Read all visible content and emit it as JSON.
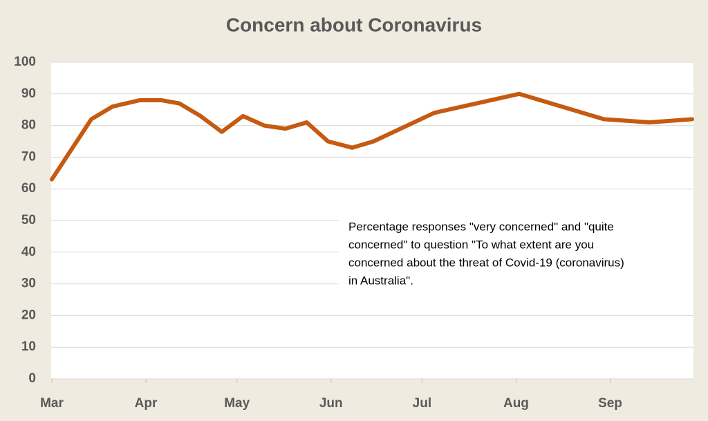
{
  "chart_data": {
    "type": "line",
    "title": "Concern about Coronavirus",
    "annotation": [
      "Percentage responses \"very concerned\" and \"quite",
      "concerned\" to question \"To what extent are you",
      "concerned about the threat of Covid-19 (coronavirus)",
      "in Australia\"."
    ],
    "x": [
      0,
      13,
      20,
      29,
      36,
      42,
      49,
      56,
      63,
      70,
      77,
      84,
      91,
      99,
      106,
      126,
      154,
      182,
      197,
      211
    ],
    "series": [
      {
        "color": "#c55a11",
        "values": [
          63,
          82,
          86,
          88,
          88,
          87,
          83,
          78,
          83,
          80,
          79,
          81,
          75,
          73,
          75,
          84,
          90,
          82,
          81,
          82
        ]
      }
    ],
    "xlim": [
      0,
      211
    ],
    "xticks": [
      {
        "value": 0,
        "label": "Mar"
      },
      {
        "value": 31,
        "label": "Apr"
      },
      {
        "value": 61,
        "label": "May"
      },
      {
        "value": 92,
        "label": "Jun"
      },
      {
        "value": 122,
        "label": "Jul"
      },
      {
        "value": 153,
        "label": "Aug"
      },
      {
        "value": 184,
        "label": "Sep"
      }
    ],
    "ylim": [
      0,
      100
    ],
    "yticks": [
      0,
      10,
      20,
      30,
      40,
      50,
      60,
      70,
      80,
      90,
      100
    ],
    "grid": true
  }
}
